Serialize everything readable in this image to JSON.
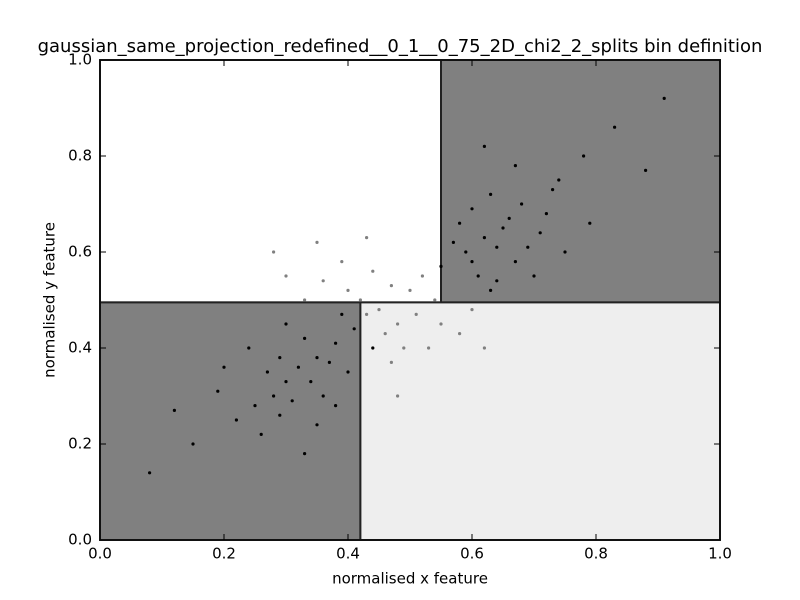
{
  "chart_data": {
    "type": "scatter",
    "title": "gaussian_same_projection_redefined__0_1__0_75_2D_chi2_2_splits bin definition",
    "xlabel": "normalised x feature",
    "ylabel": "normalised y feature",
    "xlim": [
      0,
      1
    ],
    "ylim": [
      0,
      1
    ],
    "xticks": [
      {
        "value": 0,
        "label": "0.0"
      },
      0.2,
      0.4,
      0.6,
      0.8,
      {
        "value": 1,
        "label": "1.0"
      }
    ],
    "yticks": [
      {
        "value": 0,
        "label": "0.0"
      },
      0.2,
      0.4,
      0.6,
      0.8,
      {
        "value": 1,
        "label": "1.0"
      }
    ],
    "bins": [
      {
        "x": [
          0,
          0.55
        ],
        "y": [
          0.495,
          1
        ],
        "color": "#ffffff"
      },
      {
        "x": [
          0.55,
          1
        ],
        "y": [
          0.495,
          1
        ],
        "color": "#808080"
      },
      {
        "x": [
          0,
          0.42
        ],
        "y": [
          0,
          0.495
        ],
        "color": "#808080"
      },
      {
        "x": [
          0.42,
          1
        ],
        "y": [
          0,
          0.495
        ],
        "color": "#eeeeee"
      }
    ],
    "series": [
      {
        "color": "#808080",
        "x": [
          0.45,
          0.42,
          0.48,
          0.4,
          0.5,
          0.38,
          0.52,
          0.46,
          0.44,
          0.49,
          0.36,
          0.54,
          0.43,
          0.47,
          0.41,
          0.51,
          0.39,
          0.55,
          0.33,
          0.57,
          0.3,
          0.6,
          0.47,
          0.43,
          0.53,
          0.35,
          0.58,
          0.28,
          0.62,
          0.48
        ],
        "y": [
          0.48,
          0.5,
          0.45,
          0.52,
          0.52,
          0.46,
          0.55,
          0.43,
          0.56,
          0.4,
          0.54,
          0.5,
          0.47,
          0.53,
          0.42,
          0.47,
          0.58,
          0.45,
          0.5,
          0.52,
          0.55,
          0.48,
          0.37,
          0.63,
          0.4,
          0.62,
          0.43,
          0.6,
          0.4,
          0.3
        ]
      },
      {
        "color": "#000000",
        "x": [
          0.3,
          0.35,
          0.28,
          0.38,
          0.32,
          0.25,
          0.4,
          0.33,
          0.36,
          0.29,
          0.22,
          0.41,
          0.34,
          0.27,
          0.37,
          0.31,
          0.19,
          0.39,
          0.24,
          0.35,
          0.15,
          0.12,
          0.44,
          0.3,
          0.26,
          0.08,
          0.33,
          0.2,
          0.38,
          0.29,
          0.62,
          0.66,
          0.6,
          0.68,
          0.64,
          0.58,
          0.71,
          0.63,
          0.67,
          0.59,
          0.74,
          0.61,
          0.65,
          0.69,
          0.57,
          0.72,
          0.63,
          0.78,
          0.6,
          0.7,
          0.83,
          0.88,
          0.55,
          0.67,
          0.75,
          0.91,
          0.62,
          0.79,
          0.64,
          0.73
        ],
        "y": [
          0.33,
          0.38,
          0.3,
          0.41,
          0.36,
          0.28,
          0.35,
          0.42,
          0.3,
          0.38,
          0.25,
          0.44,
          0.33,
          0.35,
          0.37,
          0.29,
          0.31,
          0.47,
          0.4,
          0.24,
          0.2,
          0.27,
          0.4,
          0.45,
          0.22,
          0.14,
          0.18,
          0.36,
          0.28,
          0.26,
          0.63,
          0.67,
          0.58,
          0.7,
          0.61,
          0.66,
          0.64,
          0.72,
          0.58,
          0.6,
          0.75,
          0.55,
          0.65,
          0.61,
          0.62,
          0.68,
          0.52,
          0.8,
          0.69,
          0.55,
          0.86,
          0.77,
          0.57,
          0.78,
          0.6,
          0.92,
          0.82,
          0.66,
          0.54,
          0.73
        ]
      }
    ]
  }
}
